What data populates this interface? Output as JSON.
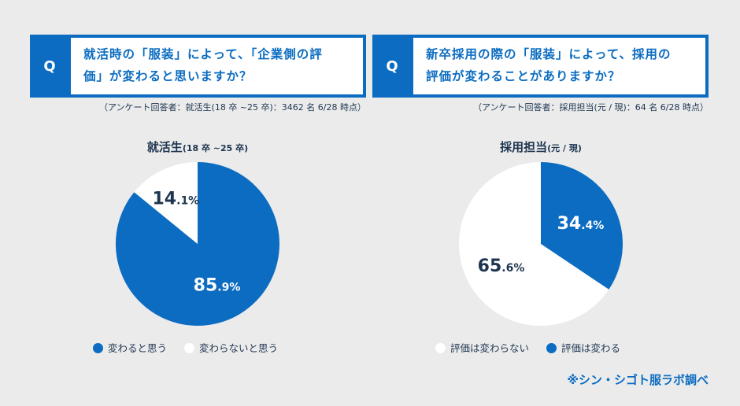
{
  "colors": {
    "accent": "#0b6cc1",
    "white": "#ffffff",
    "text": "#1e3550"
  },
  "panels": [
    {
      "q_mark": "Q",
      "question_line1": "就活時の「服装」によって、「企業側の評",
      "question_line2": "価」が変わると思いますか？",
      "note": "（アンケート回答者：就活生(18 卒 ~25 卒)：3462 名 6/28 時点）",
      "title": "就活生",
      "title_sub": "(18 卒 ~25 卒)"
    },
    {
      "q_mark": "Q",
      "question_line1": "新卒採用の際の「服装」によって、採用の",
      "question_line2": "評価が変わることがありますか？",
      "note": "（アンケート回答者：採用担当(元 / 現)：64 名 6/28 時点）",
      "title": "採用担当",
      "title_sub": "(元 / 現)"
    }
  ],
  "chart_data": [
    {
      "type": "pie",
      "title": "就活生(18 卒 ~25 卒)",
      "slices": [
        {
          "label": "変わると思う",
          "value": 85.9,
          "int": "85",
          "dec": ".9%",
          "color": "#0b6cc1"
        },
        {
          "label": "変わらないと思う",
          "value": 14.1,
          "int": "14",
          "dec": ".1%",
          "color": "#ffffff"
        }
      ],
      "legend": "bottom"
    },
    {
      "type": "pie",
      "title": "採用担当(元 / 現)",
      "slices": [
        {
          "label": "評価は変わる",
          "value": 34.4,
          "int": "34",
          "dec": ".4%",
          "color": "#0b6cc1"
        },
        {
          "label": "評価は変わらない",
          "value": 65.6,
          "int": "65",
          "dec": ".6%",
          "color": "#ffffff"
        }
      ],
      "legend": "bottom",
      "legend_order": [
        1,
        0
      ]
    }
  ],
  "credit": "※シン・シゴト服ラボ調べ"
}
